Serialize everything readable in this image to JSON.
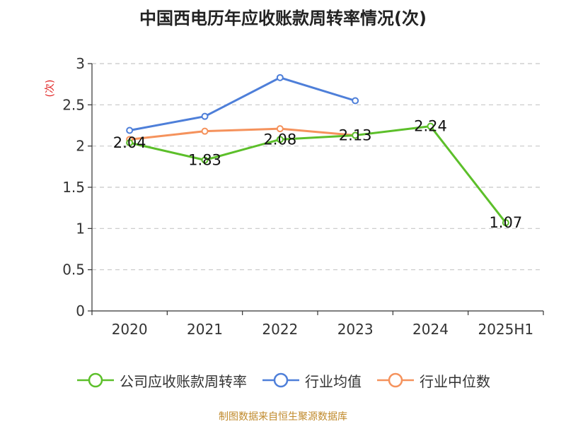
{
  "title": "中国西电历年应收账款周转率情况(次)",
  "unit_label": "(次)",
  "source": "制图数据来自恒生聚源数据库",
  "colors": {
    "company": "#5cbf2a",
    "industry_avg": "#4e7fd9",
    "industry_median": "#f5925c",
    "unit_label": "#e02020",
    "source": "#c08a2c"
  },
  "chart_data": {
    "type": "line",
    "title": "中国西电历年应收账款周转率情况(次)",
    "ylabel": "(次)",
    "categories": [
      "2020",
      "2021",
      "2022",
      "2023",
      "2024",
      "2025H1"
    ],
    "ylim": [
      0,
      3
    ],
    "yticks": [
      "0",
      "0.5",
      "1",
      "1.5",
      "2",
      "2.5",
      "3"
    ],
    "grid": true,
    "legend_position": "bottom",
    "series": [
      {
        "name": "公司应收账款周转率",
        "color": "#5cbf2a",
        "values": [
          2.04,
          1.83,
          2.08,
          2.13,
          2.24,
          1.07
        ],
        "labels": [
          "2.04",
          "1.83",
          "2.08",
          "2.13",
          "2.24",
          "1.07"
        ]
      },
      {
        "name": "行业均值",
        "color": "#4e7fd9",
        "values": [
          2.19,
          2.36,
          2.83,
          2.55,
          null,
          null
        ]
      },
      {
        "name": "行业中位数",
        "color": "#f5925c",
        "values": [
          2.08,
          2.18,
          2.21,
          2.13,
          null,
          null
        ]
      }
    ]
  }
}
